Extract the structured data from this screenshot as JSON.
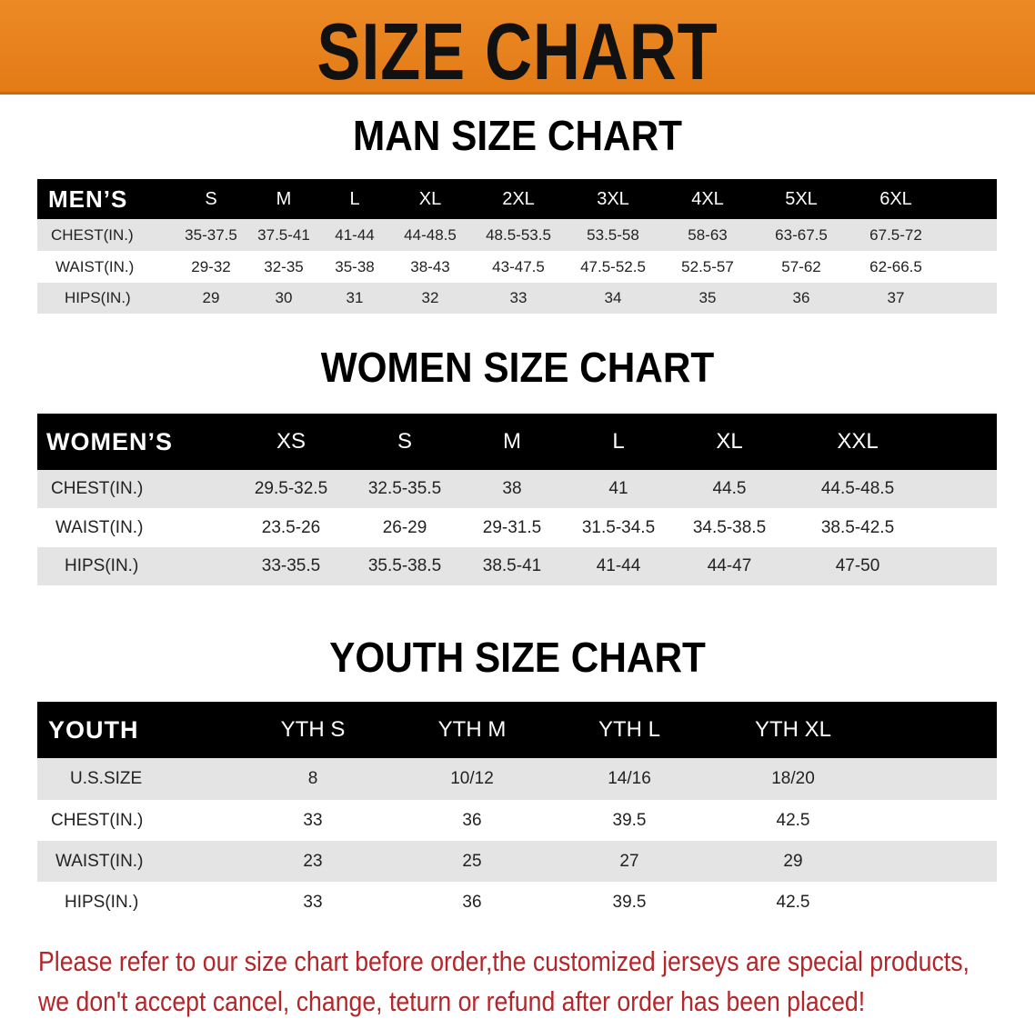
{
  "banner": {
    "title": "SIZE CHART",
    "color": "#e8821e"
  },
  "men": {
    "title": "MAN SIZE CHART",
    "header": [
      "MEN’S",
      "S",
      "M",
      "L",
      "XL",
      "2XL",
      "3XL",
      "4XL",
      "5XL",
      "6XL"
    ],
    "rows": [
      [
        "CHEST(IN.)",
        "35-37.5",
        "37.5-41",
        "41-44",
        "44-48.5",
        "48.5-53.5",
        "53.5-58",
        "58-63",
        "63-67.5",
        "67.5-72"
      ],
      [
        "WAIST(IN.)",
        "29-32",
        "32-35",
        "35-38",
        "38-43",
        "43-47.5",
        "47.5-52.5",
        "52.5-57",
        "57-62",
        "62-66.5"
      ],
      [
        "HIPS(IN.)",
        "29",
        "30",
        "31",
        "32",
        "33",
        "34",
        "35",
        "36",
        "37"
      ]
    ]
  },
  "women": {
    "title": "WOMEN SIZE CHART",
    "header": [
      "WOMEN’S",
      "XS",
      "S",
      "M",
      "L",
      "XL",
      "XXL"
    ],
    "rows": [
      [
        "CHEST(IN.)",
        "29.5-32.5",
        "32.5-35.5",
        "38",
        "41",
        "44.5",
        "44.5-48.5"
      ],
      [
        "WAIST(IN.)",
        "23.5-26",
        "26-29",
        "29-31.5",
        "31.5-34.5",
        "34.5-38.5",
        "38.5-42.5"
      ],
      [
        "HIPS(IN.)",
        "33-35.5",
        "35.5-38.5",
        "38.5-41",
        "41-44",
        "44-47",
        "47-50"
      ]
    ]
  },
  "youth": {
    "title": "YOUTH SIZE CHART",
    "header": [
      "YOUTH",
      "YTH S",
      "YTH M",
      "YTH L",
      "YTH XL"
    ],
    "rows": [
      [
        "U.S.SIZE",
        "8",
        "10/12",
        "14/16",
        "18/20"
      ],
      [
        "CHEST(IN.)",
        "33",
        "36",
        "39.5",
        "42.5"
      ],
      [
        "WAIST(IN.)",
        "23",
        "25",
        "27",
        "29"
      ],
      [
        "HIPS(IN.)",
        "33",
        "36",
        "39.5",
        "42.5"
      ]
    ]
  },
  "notice": {
    "line1": "Please refer to our size chart before order,the customized jerseys are special products,",
    "line2": "we don't accept cancel, change, teturn or refund after order has been placed!",
    "color": "#b3262a"
  }
}
